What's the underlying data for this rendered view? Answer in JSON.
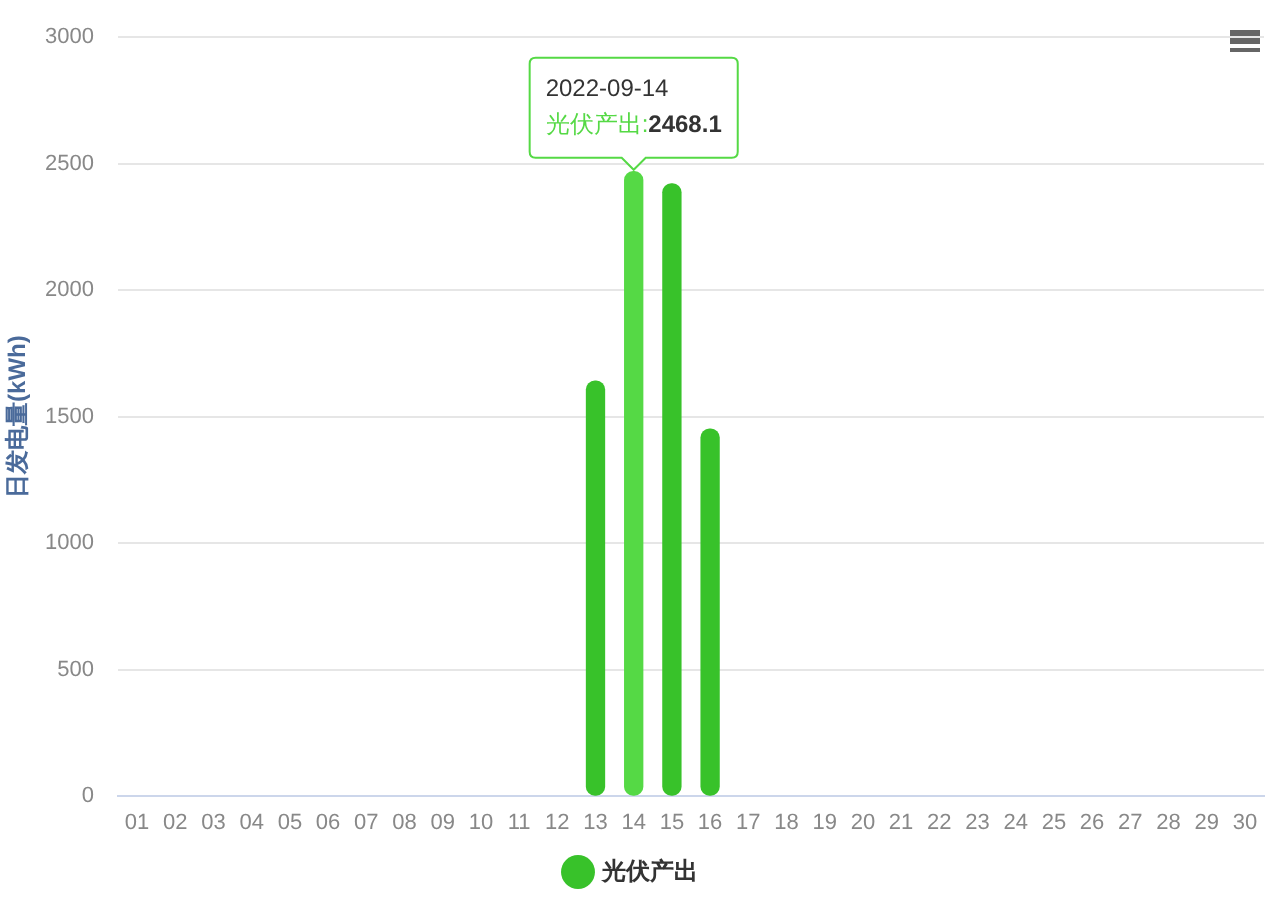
{
  "chart_data": {
    "type": "bar",
    "ylabel": "日发电量(kWh)",
    "categories": [
      "01",
      "02",
      "03",
      "04",
      "05",
      "06",
      "07",
      "08",
      "09",
      "10",
      "11",
      "12",
      "13",
      "14",
      "15",
      "16",
      "17",
      "18",
      "19",
      "20",
      "21",
      "22",
      "23",
      "24",
      "25",
      "26",
      "27",
      "28",
      "29",
      "30"
    ],
    "series": [
      {
        "name": "光伏产出",
        "color": "#38c22a",
        "colors": [
          "#38c22a",
          "#38c22a",
          "#38c22a",
          "#38c22a",
          "#38c22a",
          "#38c22a",
          "#38c22a",
          "#38c22a",
          "#38c22a",
          "#38c22a",
          "#38c22a",
          "#38c22a",
          "#38c22a",
          "#55d945",
          "#38c22a",
          "#38c22a",
          "#38c22a",
          "#38c22a",
          "#38c22a",
          "#38c22a",
          "#38c22a",
          "#38c22a",
          "#38c22a",
          "#38c22a",
          "#38c22a",
          "#38c22a",
          "#38c22a",
          "#38c22a",
          "#38c22a",
          "#38c22a"
        ],
        "values": [
          null,
          null,
          null,
          null,
          null,
          null,
          null,
          null,
          null,
          null,
          null,
          null,
          1640,
          2468.1,
          2420,
          1450,
          null,
          null,
          null,
          null,
          null,
          null,
          null,
          null,
          null,
          null,
          null,
          null,
          null,
          null
        ]
      }
    ],
    "ylim": [
      0,
      3000
    ],
    "yticks": [
      0,
      500,
      1000,
      1500,
      2000,
      2500,
      3000
    ],
    "grid": "y",
    "legend": "bottom",
    "annotations": [
      {
        "text": "2022-09-14\n光伏产出:2468.1",
        "x": "14",
        "y": 2468.1
      }
    ]
  }
}
